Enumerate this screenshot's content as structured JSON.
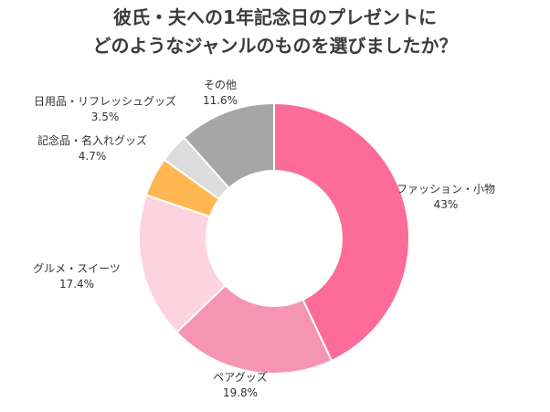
{
  "chart_data": {
    "type": "pie",
    "title_lines": [
      "彼氏・夫への1年記念日のプレゼントに",
      "どのようなジャンルのものを選びましたか？"
    ],
    "donut": true,
    "slices": [
      {
        "label": "ファッション・小物",
        "value": 43,
        "value_label": "43%",
        "color": "#fd6c98"
      },
      {
        "label": "ペアグッズ",
        "value": 19.8,
        "value_label": "19.8%",
        "color": "#f695b3"
      },
      {
        "label": "グルメ・スイーツ",
        "value": 17.4,
        "value_label": "17.4%",
        "color": "#fdd3e0"
      },
      {
        "label": "記念品・名入れグッズ",
        "value": 4.7,
        "value_label": "4.7%",
        "color": "#ffb752"
      },
      {
        "label": "日用品・リフレッシュグッズ",
        "value": 3.5,
        "value_label": "3.5%",
        "color": "#dcdcdc"
      },
      {
        "label": "その他",
        "value": 11.6,
        "value_label": "11.6%",
        "color": "#a6a6a6"
      }
    ]
  }
}
